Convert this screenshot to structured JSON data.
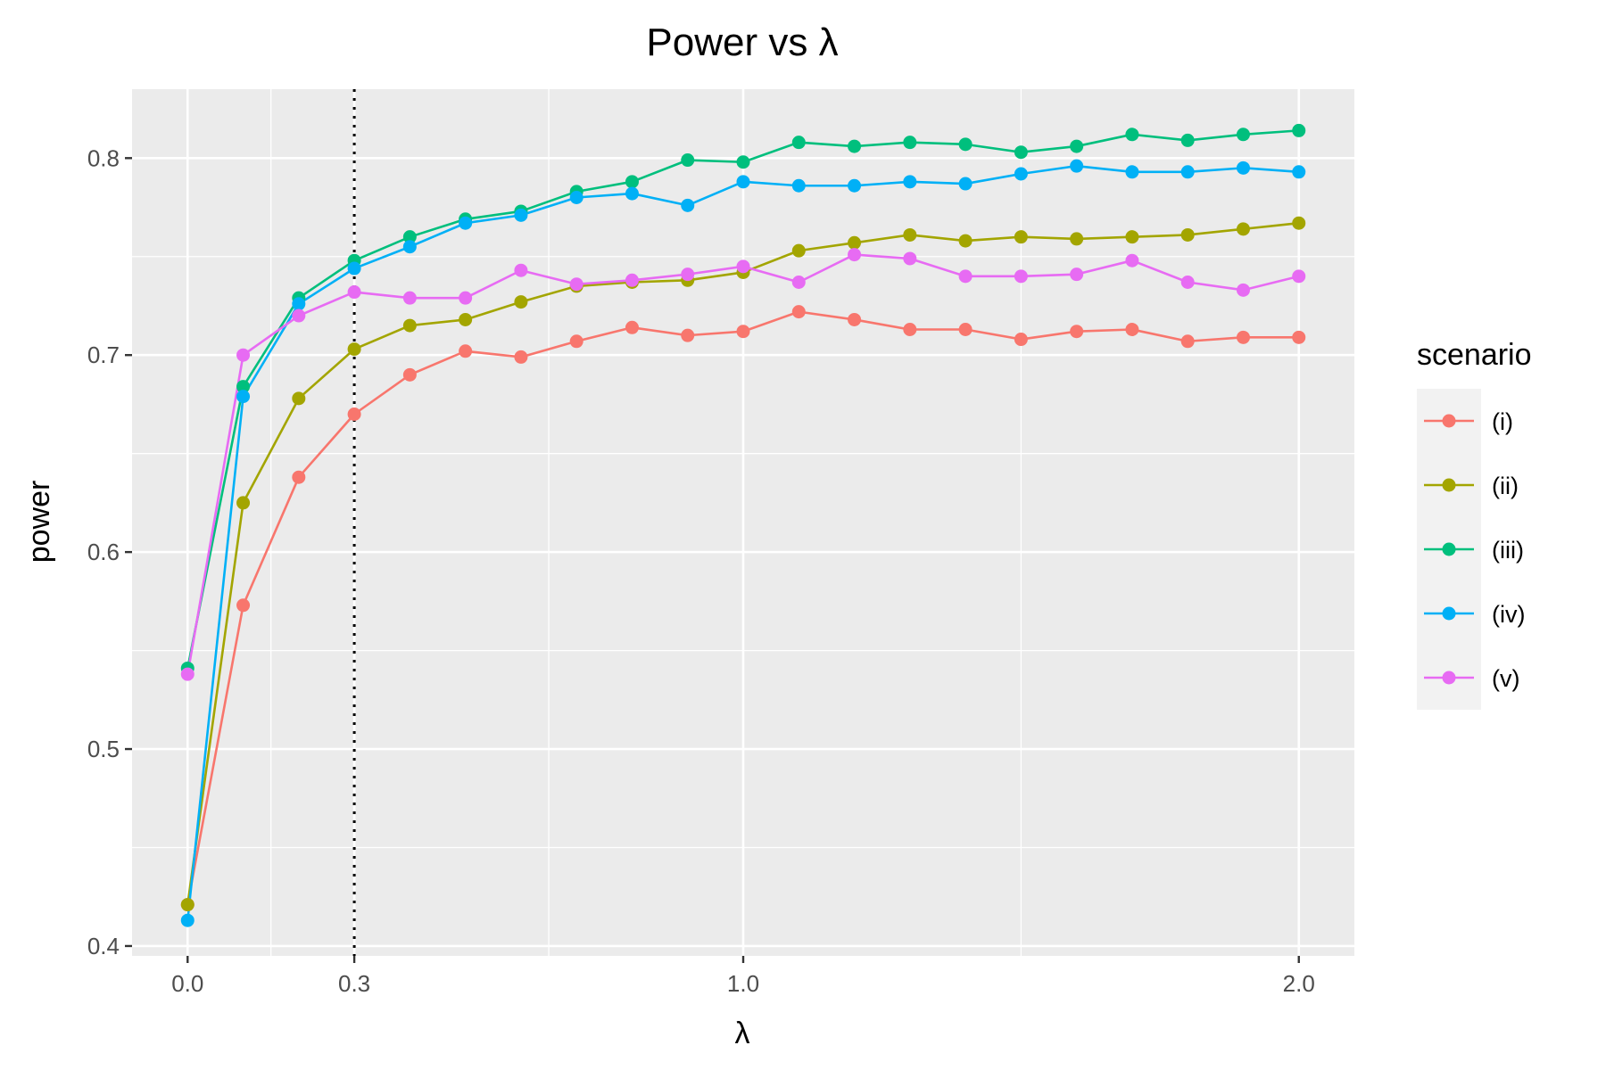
{
  "chart_data": {
    "type": "line",
    "title": "Power vs λ",
    "xlabel": "λ",
    "ylabel": "power",
    "xlim": [
      -0.1,
      2.1
    ],
    "ylim": [
      0.395,
      0.835
    ],
    "x_ticks": [
      {
        "value": 0.0,
        "label": "0.0"
      },
      {
        "value": 0.3,
        "label": "0.3"
      },
      {
        "value": 1.0,
        "label": "1.0"
      },
      {
        "value": 2.0,
        "label": "2.0"
      }
    ],
    "x_minor_grid": [
      0.15,
      0.65,
      1.5
    ],
    "y_ticks": [
      {
        "value": 0.4,
        "label": "0.4"
      },
      {
        "value": 0.5,
        "label": "0.5"
      },
      {
        "value": 0.6,
        "label": "0.6"
      },
      {
        "value": 0.7,
        "label": "0.7"
      },
      {
        "value": 0.8,
        "label": "0.8"
      }
    ],
    "y_minor_grid": [
      0.45,
      0.55,
      0.65,
      0.75
    ],
    "vline": {
      "x": 0.3,
      "style": "dotted",
      "color": "#000000"
    },
    "grid": true,
    "legend": {
      "title": "scenario",
      "position": "right"
    },
    "x": [
      0.0,
      0.1,
      0.2,
      0.3,
      0.4,
      0.5,
      0.6,
      0.7,
      0.8,
      0.9,
      1.0,
      1.1,
      1.2,
      1.3,
      1.4,
      1.5,
      1.6,
      1.7,
      1.8,
      1.9,
      2.0
    ],
    "series": [
      {
        "name": "(i)",
        "color": "#F8766D",
        "values": [
          0.421,
          0.573,
          0.638,
          0.67,
          0.69,
          0.702,
          0.699,
          0.707,
          0.714,
          0.71,
          0.712,
          0.722,
          0.718,
          0.713,
          0.713,
          0.708,
          0.712,
          0.713,
          0.707,
          0.709,
          0.709
        ]
      },
      {
        "name": "(ii)",
        "color": "#A3A500",
        "values": [
          0.421,
          0.625,
          0.678,
          0.703,
          0.715,
          0.718,
          0.727,
          0.735,
          0.737,
          0.738,
          0.742,
          0.753,
          0.757,
          0.761,
          0.758,
          0.76,
          0.759,
          0.76,
          0.761,
          0.764,
          0.767
        ]
      },
      {
        "name": "(iii)",
        "color": "#00BF7D",
        "values": [
          0.541,
          0.684,
          0.729,
          0.748,
          0.76,
          0.769,
          0.773,
          0.783,
          0.788,
          0.799,
          0.798,
          0.808,
          0.806,
          0.808,
          0.807,
          0.803,
          0.806,
          0.812,
          0.809,
          0.812,
          0.814
        ]
      },
      {
        "name": "(iv)",
        "color": "#00B0F6",
        "values": [
          0.413,
          0.679,
          0.726,
          0.744,
          0.755,
          0.767,
          0.771,
          0.78,
          0.782,
          0.776,
          0.788,
          0.786,
          0.786,
          0.788,
          0.787,
          0.792,
          0.796,
          0.793,
          0.793,
          0.795,
          0.793
        ]
      },
      {
        "name": "(v)",
        "color": "#E76BF3",
        "values": [
          0.538,
          0.7,
          0.72,
          0.732,
          0.729,
          0.729,
          0.743,
          0.736,
          0.738,
          0.741,
          0.745,
          0.737,
          0.751,
          0.749,
          0.74,
          0.74,
          0.741,
          0.748,
          0.737,
          0.733,
          0.74
        ]
      }
    ]
  }
}
